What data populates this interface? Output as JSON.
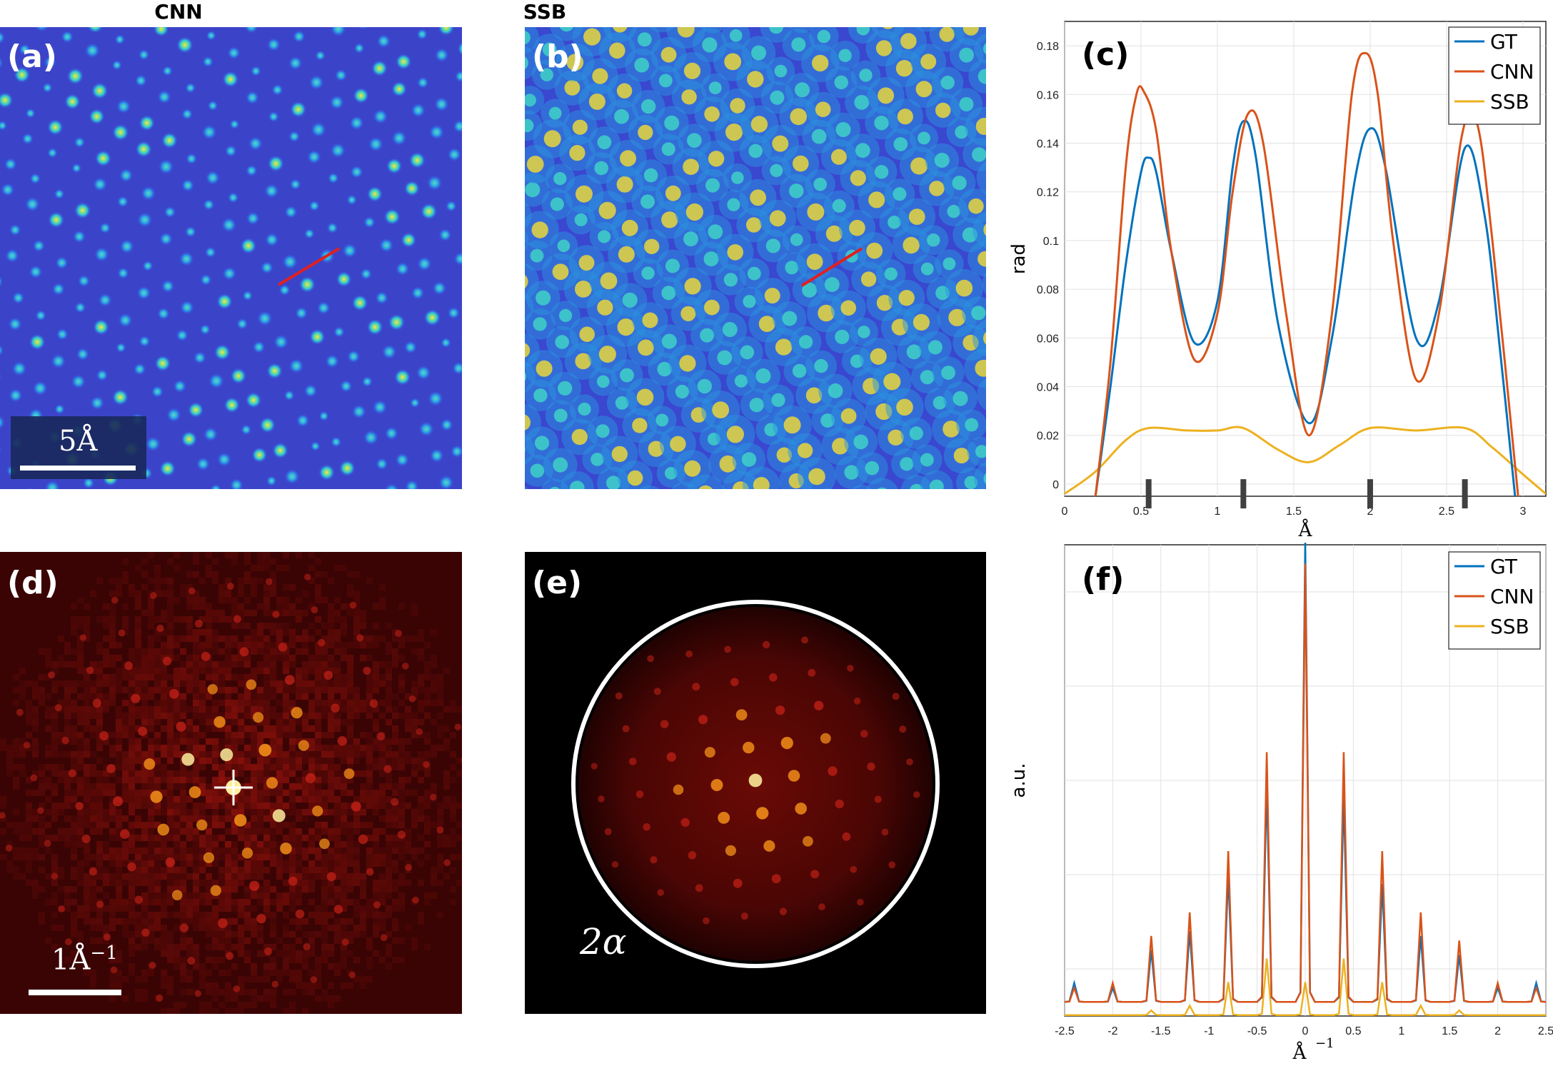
{
  "columns": {
    "cnn": "CNN",
    "ssb": "SSB"
  },
  "panels": {
    "a": {
      "label": "(a)",
      "scale_label": "5Å"
    },
    "b": {
      "label": "(b)"
    },
    "c": {
      "label": "(c)"
    },
    "d": {
      "label": "(d)",
      "scale_label": "1Å",
      "scale_sup": "−1"
    },
    "e": {
      "label": "(e)",
      "aperture_label": "2α"
    },
    "f": {
      "label": "(f)"
    }
  },
  "colors": {
    "GT": "#0072BD",
    "CNN": "#D95319",
    "SSB": "#EDB120",
    "line_profile": "#e02020"
  },
  "chart_data": [
    {
      "type": "line",
      "panel": "c",
      "xlabel": "Å",
      "ylabel": "rad",
      "xlim": [
        0,
        3.15
      ],
      "ylim": [
        -0.005,
        0.19
      ],
      "xticks": [
        0,
        0.5,
        1,
        1.5,
        2,
        2.5,
        3
      ],
      "xtick_labels": [
        "0",
        "0.5",
        "1",
        "1.5",
        "2",
        "2.5",
        "3"
      ],
      "yticks": [
        0,
        0.02,
        0.04,
        0.06,
        0.08,
        0.1,
        0.12,
        0.14,
        0.16,
        0.18
      ],
      "ytick_labels": [
        "0",
        "0.02",
        "0.04",
        "0.06",
        "0.08",
        "0.1",
        "0.12",
        "0.14",
        "0.16",
        "0.18"
      ],
      "grid": true,
      "legend": "top-right",
      "atom_markers": [
        0.55,
        1.17,
        2.0,
        2.62
      ],
      "series": [
        {
          "name": "GT",
          "x": [
            0.2,
            0.3,
            0.4,
            0.5,
            0.55,
            0.6,
            0.7,
            0.85,
            1.0,
            1.1,
            1.17,
            1.25,
            1.4,
            1.6,
            1.75,
            1.9,
            2.0,
            2.1,
            2.3,
            2.45,
            2.62,
            2.75,
            2.85,
            2.95
          ],
          "y": [
            -0.006,
            0.04,
            0.09,
            0.128,
            0.134,
            0.128,
            0.095,
            0.058,
            0.075,
            0.13,
            0.149,
            0.135,
            0.065,
            0.025,
            0.06,
            0.125,
            0.146,
            0.13,
            0.06,
            0.075,
            0.138,
            0.11,
            0.055,
            -0.006
          ]
        },
        {
          "name": "CNN",
          "x": [
            0.2,
            0.3,
            0.4,
            0.47,
            0.52,
            0.6,
            0.7,
            0.85,
            1.0,
            1.1,
            1.2,
            1.3,
            1.45,
            1.6,
            1.75,
            1.88,
            1.97,
            2.05,
            2.15,
            2.3,
            2.45,
            2.6,
            2.7,
            2.8,
            2.97
          ],
          "y": [
            -0.006,
            0.05,
            0.13,
            0.16,
            0.161,
            0.145,
            0.095,
            0.051,
            0.07,
            0.12,
            0.152,
            0.14,
            0.07,
            0.02,
            0.07,
            0.16,
            0.177,
            0.16,
            0.1,
            0.043,
            0.07,
            0.143,
            0.148,
            0.1,
            -0.006
          ]
        },
        {
          "name": "SSB",
          "x": [
            0,
            0.2,
            0.4,
            0.55,
            0.8,
            1.0,
            1.17,
            1.4,
            1.6,
            1.8,
            2.0,
            2.3,
            2.62,
            2.8,
            3.0,
            3.15
          ],
          "y": [
            -0.004,
            0.005,
            0.018,
            0.023,
            0.022,
            0.022,
            0.023,
            0.014,
            0.009,
            0.016,
            0.023,
            0.022,
            0.023,
            0.015,
            0.004,
            -0.004
          ]
        }
      ]
    },
    {
      "type": "line",
      "panel": "f",
      "xlabel": "Å",
      "xlabel_sup": "−1",
      "ylabel": "a.u.",
      "xlim": [
        -2.5,
        2.5
      ],
      "ylim": [
        0,
        1
      ],
      "xticks": [
        -2.5,
        -2,
        -1.5,
        -1,
        -0.5,
        0,
        0.5,
        1,
        1.5,
        2,
        2.5
      ],
      "xtick_labels": [
        "-2.5",
        "-2",
        "-1.5",
        "-1",
        "-0.5",
        "0",
        "0.5",
        "1",
        "1.5",
        "2",
        "2.5"
      ],
      "grid": true,
      "legend": "top-right",
      "peaks": {
        "x": [
          -2.4,
          -2.0,
          -1.6,
          -1.2,
          -0.8,
          -0.4,
          0.0,
          0.4,
          0.8,
          1.2,
          1.6,
          2.0,
          2.4
        ],
        "GT": [
          0.04,
          0.03,
          0.11,
          0.15,
          0.27,
          0.46,
          0.98,
          0.44,
          0.25,
          0.14,
          0.1,
          0.03,
          0.04
        ],
        "CNN": [
          0.03,
          0.04,
          0.14,
          0.19,
          0.32,
          0.53,
          0.93,
          0.53,
          0.32,
          0.19,
          0.13,
          0.04,
          0.03
        ],
        "SSB": [
          0.0,
          0.0,
          0.01,
          0.02,
          0.07,
          0.12,
          0.07,
          0.12,
          0.07,
          0.02,
          0.01,
          0.0,
          0.0
        ]
      },
      "series": [
        {
          "name": "GT"
        },
        {
          "name": "CNN"
        },
        {
          "name": "SSB"
        }
      ]
    }
  ]
}
